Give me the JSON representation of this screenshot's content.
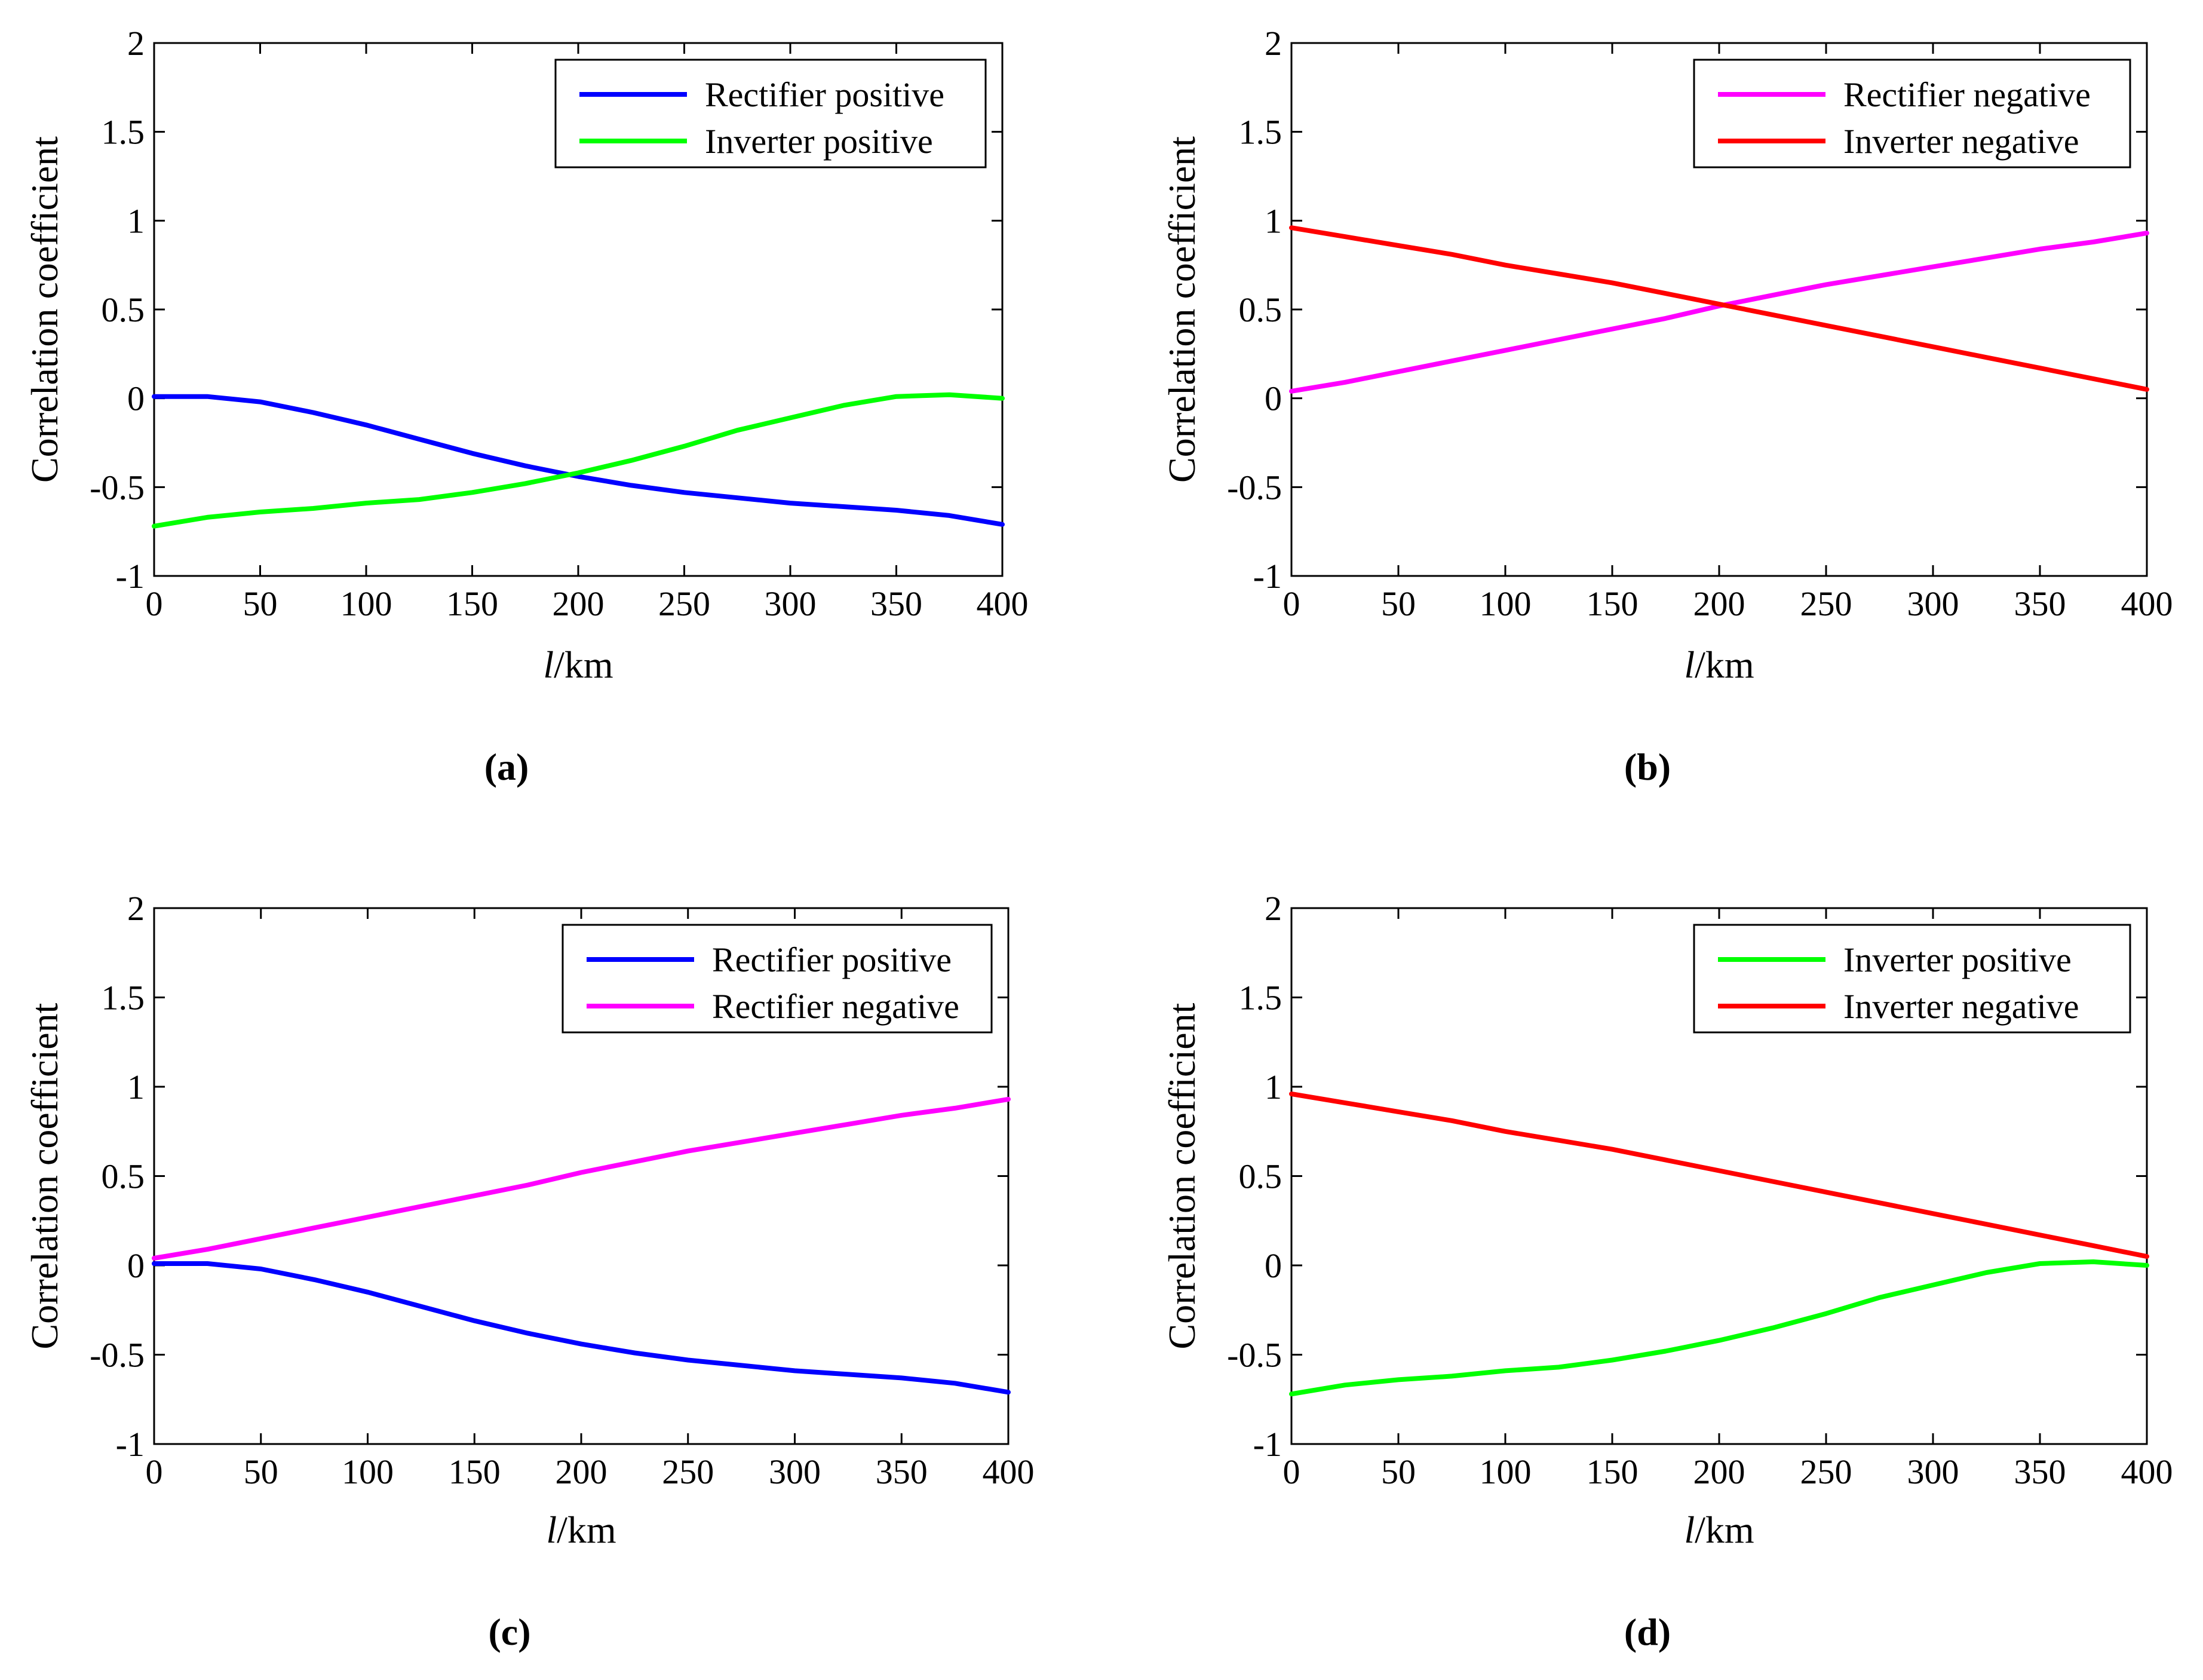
{
  "chart_data": [
    {
      "type": "line",
      "panel_label": "a",
      "caption": "(a)",
      "xlabel": "l/km",
      "xlabel_italic_part": "l",
      "xlabel_unit_part": "/km",
      "ylabel": "Correlation coefficient",
      "xlim": [
        0,
        400
      ],
      "ylim": [
        -1,
        2
      ],
      "xticks": [
        "0",
        "50",
        "100",
        "150",
        "200",
        "250",
        "300",
        "350",
        "400"
      ],
      "yticks": [
        "-1",
        "-0.5",
        "0",
        "0.5",
        "1",
        "1.5",
        "2"
      ],
      "grid": false,
      "legend_position": "top-right",
      "x": [
        0,
        25,
        50,
        75,
        100,
        125,
        150,
        175,
        200,
        225,
        250,
        275,
        300,
        325,
        350,
        375,
        400
      ],
      "series": [
        {
          "name": "Rectifier positive",
          "color": "#0000ff",
          "values": [
            0.01,
            0.01,
            -0.02,
            -0.08,
            -0.15,
            -0.23,
            -0.31,
            -0.38,
            -0.44,
            -0.49,
            -0.53,
            -0.56,
            -0.59,
            -0.61,
            -0.63,
            -0.66,
            -0.71
          ]
        },
        {
          "name": "Inverter positive",
          "color": "#00ff00",
          "values": [
            -0.72,
            -0.67,
            -0.64,
            -0.62,
            -0.59,
            -0.57,
            -0.53,
            -0.48,
            -0.42,
            -0.35,
            -0.27,
            -0.18,
            -0.11,
            -0.04,
            0.01,
            0.02,
            0.0
          ]
        }
      ]
    },
    {
      "type": "line",
      "panel_label": "b",
      "caption": "(b)",
      "xlabel": "l/km",
      "xlabel_italic_part": "l",
      "xlabel_unit_part": "/km",
      "ylabel": "Correlation coefficient",
      "xlim": [
        0,
        400
      ],
      "ylim": [
        -1,
        2
      ],
      "xticks": [
        "0",
        "50",
        "100",
        "150",
        "200",
        "250",
        "300",
        "350",
        "400"
      ],
      "yticks": [
        "-1",
        "-0.5",
        "0",
        "0.5",
        "1",
        "1.5",
        "2"
      ],
      "grid": false,
      "legend_position": "top-right",
      "x": [
        0,
        25,
        50,
        75,
        100,
        125,
        150,
        175,
        200,
        225,
        250,
        275,
        300,
        325,
        350,
        375,
        400
      ],
      "series": [
        {
          "name": "Rectifier negative",
          "color": "#ff00ff",
          "values": [
            0.04,
            0.09,
            0.15,
            0.21,
            0.27,
            0.33,
            0.39,
            0.45,
            0.52,
            0.58,
            0.64,
            0.69,
            0.74,
            0.79,
            0.84,
            0.88,
            0.93
          ]
        },
        {
          "name": "Inverter negative",
          "color": "#ff0000",
          "values": [
            0.96,
            0.91,
            0.86,
            0.81,
            0.75,
            0.7,
            0.65,
            0.59,
            0.53,
            0.47,
            0.41,
            0.35,
            0.29,
            0.23,
            0.17,
            0.11,
            0.05
          ]
        }
      ]
    },
    {
      "type": "line",
      "panel_label": "c",
      "caption": "(c)",
      "xlabel": "l/km",
      "xlabel_italic_part": "l",
      "xlabel_unit_part": "/km",
      "ylabel": "Correlation coefficient",
      "xlim": [
        0,
        400
      ],
      "ylim": [
        -1,
        2
      ],
      "xticks": [
        "0",
        "50",
        "100",
        "150",
        "200",
        "250",
        "300",
        "350",
        "400"
      ],
      "yticks": [
        "-1",
        "-0.5",
        "0",
        "0.5",
        "1",
        "1.5",
        "2"
      ],
      "grid": false,
      "legend_position": "top-right",
      "x": [
        0,
        25,
        50,
        75,
        100,
        125,
        150,
        175,
        200,
        225,
        250,
        275,
        300,
        325,
        350,
        375,
        400
      ],
      "series": [
        {
          "name": "Rectifier positive",
          "color": "#0000ff",
          "values": [
            0.01,
            0.01,
            -0.02,
            -0.08,
            -0.15,
            -0.23,
            -0.31,
            -0.38,
            -0.44,
            -0.49,
            -0.53,
            -0.56,
            -0.59,
            -0.61,
            -0.63,
            -0.66,
            -0.71
          ]
        },
        {
          "name": "Rectifier negative",
          "color": "#ff00ff",
          "values": [
            0.04,
            0.09,
            0.15,
            0.21,
            0.27,
            0.33,
            0.39,
            0.45,
            0.52,
            0.58,
            0.64,
            0.69,
            0.74,
            0.79,
            0.84,
            0.88,
            0.93
          ]
        }
      ]
    },
    {
      "type": "line",
      "panel_label": "d",
      "caption": "(d)",
      "xlabel": "l/km",
      "xlabel_italic_part": "l",
      "xlabel_unit_part": "/km",
      "ylabel": "Correlation coefficient",
      "xlim": [
        0,
        400
      ],
      "ylim": [
        -1,
        2
      ],
      "xticks": [
        "0",
        "50",
        "100",
        "150",
        "200",
        "250",
        "300",
        "350",
        "400"
      ],
      "yticks": [
        "-1",
        "-0.5",
        "0",
        "0.5",
        "1",
        "1.5",
        "2"
      ],
      "grid": false,
      "legend_position": "top-right",
      "x": [
        0,
        25,
        50,
        75,
        100,
        125,
        150,
        175,
        200,
        225,
        250,
        275,
        300,
        325,
        350,
        375,
        400
      ],
      "series": [
        {
          "name": "Inverter positive",
          "color": "#00ff00",
          "values": [
            -0.72,
            -0.67,
            -0.64,
            -0.62,
            -0.59,
            -0.57,
            -0.53,
            -0.48,
            -0.42,
            -0.35,
            -0.27,
            -0.18,
            -0.11,
            -0.04,
            0.01,
            0.02,
            0.0
          ]
        },
        {
          "name": "Inverter negative",
          "color": "#ff0000",
          "values": [
            0.96,
            0.91,
            0.86,
            0.81,
            0.75,
            0.7,
            0.65,
            0.59,
            0.53,
            0.47,
            0.41,
            0.35,
            0.29,
            0.23,
            0.17,
            0.11,
            0.05
          ]
        }
      ]
    }
  ]
}
